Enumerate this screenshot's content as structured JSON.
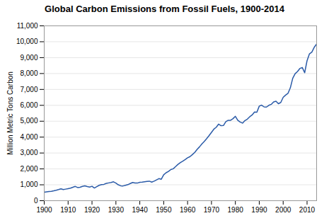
{
  "chart_data": {
    "type": "line",
    "title": "Global Carbon Emissions from Fossil Fuels, 1900-2014",
    "ylabel": "Million Metric Tons Carbon",
    "color": "#2b5ba8",
    "grid": true,
    "xlim": [
      1900,
      2014
    ],
    "ylim": [
      0,
      11000
    ],
    "xticks": [
      1900,
      1910,
      1920,
      1930,
      1940,
      1950,
      1960,
      1970,
      1980,
      1990,
      2000,
      2010
    ],
    "yticks": [
      0,
      {
        "value": 1000,
        "label": "1,000"
      },
      {
        "value": 2000,
        "label": "2,000"
      },
      {
        "value": 3000,
        "label": "3,000"
      },
      {
        "value": 4000,
        "label": "4,000"
      },
      {
        "value": 5000,
        "label": "5,000"
      },
      {
        "value": 6000,
        "label": "6,000"
      },
      {
        "value": 7000,
        "label": "7,000"
      },
      {
        "value": 8000,
        "label": "8,000"
      },
      {
        "value": 9000,
        "label": "9,000"
      },
      {
        "value": 10000,
        "label": "10,000"
      },
      {
        "value": 11000,
        "label": "11,000"
      }
    ],
    "x": [
      1900,
      1901,
      1902,
      1903,
      1904,
      1905,
      1906,
      1907,
      1908,
      1909,
      1910,
      1911,
      1912,
      1913,
      1914,
      1915,
      1916,
      1917,
      1918,
      1919,
      1920,
      1921,
      1922,
      1923,
      1924,
      1925,
      1926,
      1927,
      1928,
      1929,
      1930,
      1931,
      1932,
      1933,
      1934,
      1935,
      1936,
      1937,
      1938,
      1939,
      1940,
      1941,
      1942,
      1943,
      1944,
      1945,
      1946,
      1947,
      1948,
      1949,
      1950,
      1951,
      1952,
      1953,
      1954,
      1955,
      1956,
      1957,
      1958,
      1959,
      1960,
      1961,
      1962,
      1963,
      1964,
      1965,
      1966,
      1967,
      1968,
      1969,
      1970,
      1971,
      1972,
      1973,
      1974,
      1975,
      1976,
      1977,
      1978,
      1979,
      1980,
      1981,
      1982,
      1983,
      1984,
      1985,
      1986,
      1987,
      1988,
      1989,
      1990,
      1991,
      1992,
      1993,
      1994,
      1995,
      1996,
      1997,
      1998,
      1999,
      2000,
      2001,
      2002,
      2003,
      2004,
      2005,
      2006,
      2007,
      2008,
      2009,
      2010,
      2011,
      2012,
      2013,
      2014
    ],
    "values": [
      534,
      554,
      574,
      594,
      624,
      659,
      699,
      749,
      699,
      729,
      759,
      789,
      849,
      899,
      829,
      849,
      899,
      939,
      889,
      859,
      909,
      799,
      889,
      969,
      1009,
      1029,
      1089,
      1119,
      1149,
      1189,
      1109,
      999,
      939,
      929,
      969,
      1009,
      1079,
      1149,
      1109,
      1109,
      1159,
      1169,
      1189,
      1209,
      1229,
      1169,
      1229,
      1309,
      1389,
      1349,
      1630,
      1760,
      1840,
      1960,
      2010,
      2150,
      2290,
      2400,
      2490,
      2590,
      2700,
      2770,
      2900,
      3040,
      3230,
      3390,
      3570,
      3730,
      3910,
      4100,
      4300,
      4500,
      4620,
      4820,
      4720,
      4730,
      4970,
      5060,
      5060,
      5160,
      5310,
      5060,
      4950,
      4880,
      5040,
      5130,
      5280,
      5390,
      5580,
      5570,
      5950,
      6010,
      5900,
      5890,
      6000,
      6060,
      6210,
      6260,
      6100,
      6180,
      6500,
      6640,
      6750,
      7100,
      7700,
      7990,
      8130,
      8320,
      8380,
      8050,
      8810,
      9240,
      9350,
      9650,
      9850
    ]
  }
}
